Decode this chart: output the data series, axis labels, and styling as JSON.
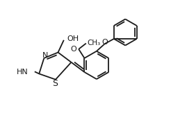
{
  "bg_color": "#ffffff",
  "line_color": "#1a1a1a",
  "line_width": 1.3,
  "font_size": 8.0,
  "figsize": [
    2.69,
    2.03
  ],
  "dpi": 100,
  "xlim": [
    -0.5,
    10.5
  ],
  "ylim": [
    -0.5,
    8.0
  ]
}
